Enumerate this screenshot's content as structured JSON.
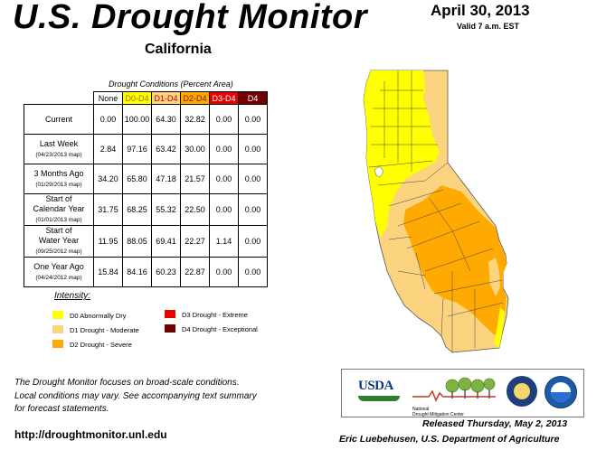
{
  "header": {
    "title": "U.S. Drought Monitor",
    "region": "California",
    "date": "April 30, 2013",
    "valid": "Valid 7 a.m. EST"
  },
  "table": {
    "caption": "Drought Conditions (Percent Area)",
    "columns": [
      "None",
      "D0-D4",
      "D1-D4",
      "D2-D4",
      "D3-D4",
      "D4"
    ],
    "rows": [
      {
        "label": "Current",
        "sub": "",
        "values": [
          "0.00",
          "100.00",
          "64.30",
          "32.82",
          "0.00",
          "0.00"
        ]
      },
      {
        "label": "Last Week",
        "sub": "(04/23/2013 map)",
        "values": [
          "2.84",
          "97.16",
          "63.42",
          "30.00",
          "0.00",
          "0.00"
        ]
      },
      {
        "label": "3 Months Ago",
        "sub": "(01/29/2013 map)",
        "values": [
          "34.20",
          "65.80",
          "47.18",
          "21.57",
          "0.00",
          "0.00"
        ]
      },
      {
        "label": "Start of",
        "label2": "Calendar Year",
        "sub": "(01/01/2013 map)",
        "values": [
          "31.75",
          "68.25",
          "55.32",
          "22.50",
          "0.00",
          "0.00"
        ]
      },
      {
        "label": "Start of",
        "label2": "Water Year",
        "sub": "(09/25/2012 map)",
        "values": [
          "11.95",
          "88.05",
          "69.41",
          "22.27",
          "1.14",
          "0.00"
        ]
      },
      {
        "label": "One Year Ago",
        "sub": "(04/24/2012 map)",
        "values": [
          "15.84",
          "84.16",
          "60.23",
          "22.87",
          "0.00",
          "0.00"
        ]
      }
    ]
  },
  "legend": {
    "title": "Intensity:",
    "items": [
      {
        "label": "D0 Abnormally Dry",
        "color": "#ffff00"
      },
      {
        "label": "D1 Drought - Moderate",
        "color": "#fcd37f"
      },
      {
        "label": "D2 Drought - Severe",
        "color": "#ffaa00"
      },
      {
        "label": "D3 Drought - Extreme",
        "color": "#e60000"
      },
      {
        "label": "D4 Drought - Exceptional",
        "color": "#730000"
      }
    ]
  },
  "note": {
    "line1": "The Drought Monitor focuses on broad-scale conditions.",
    "line2": "Local conditions may vary. See accompanying text summary",
    "line3": "for forecast statements."
  },
  "footer": {
    "url": "http://droughtmonitor.unl.edu",
    "released": "Released Thursday, May 2, 2013",
    "author": "Eric Luebehusen, U.S. Department of Agriculture"
  },
  "logos": {
    "usda": "USDA",
    "ndmc_line1": "National",
    "ndmc_line2": "Drought Mitigation Center"
  }
}
